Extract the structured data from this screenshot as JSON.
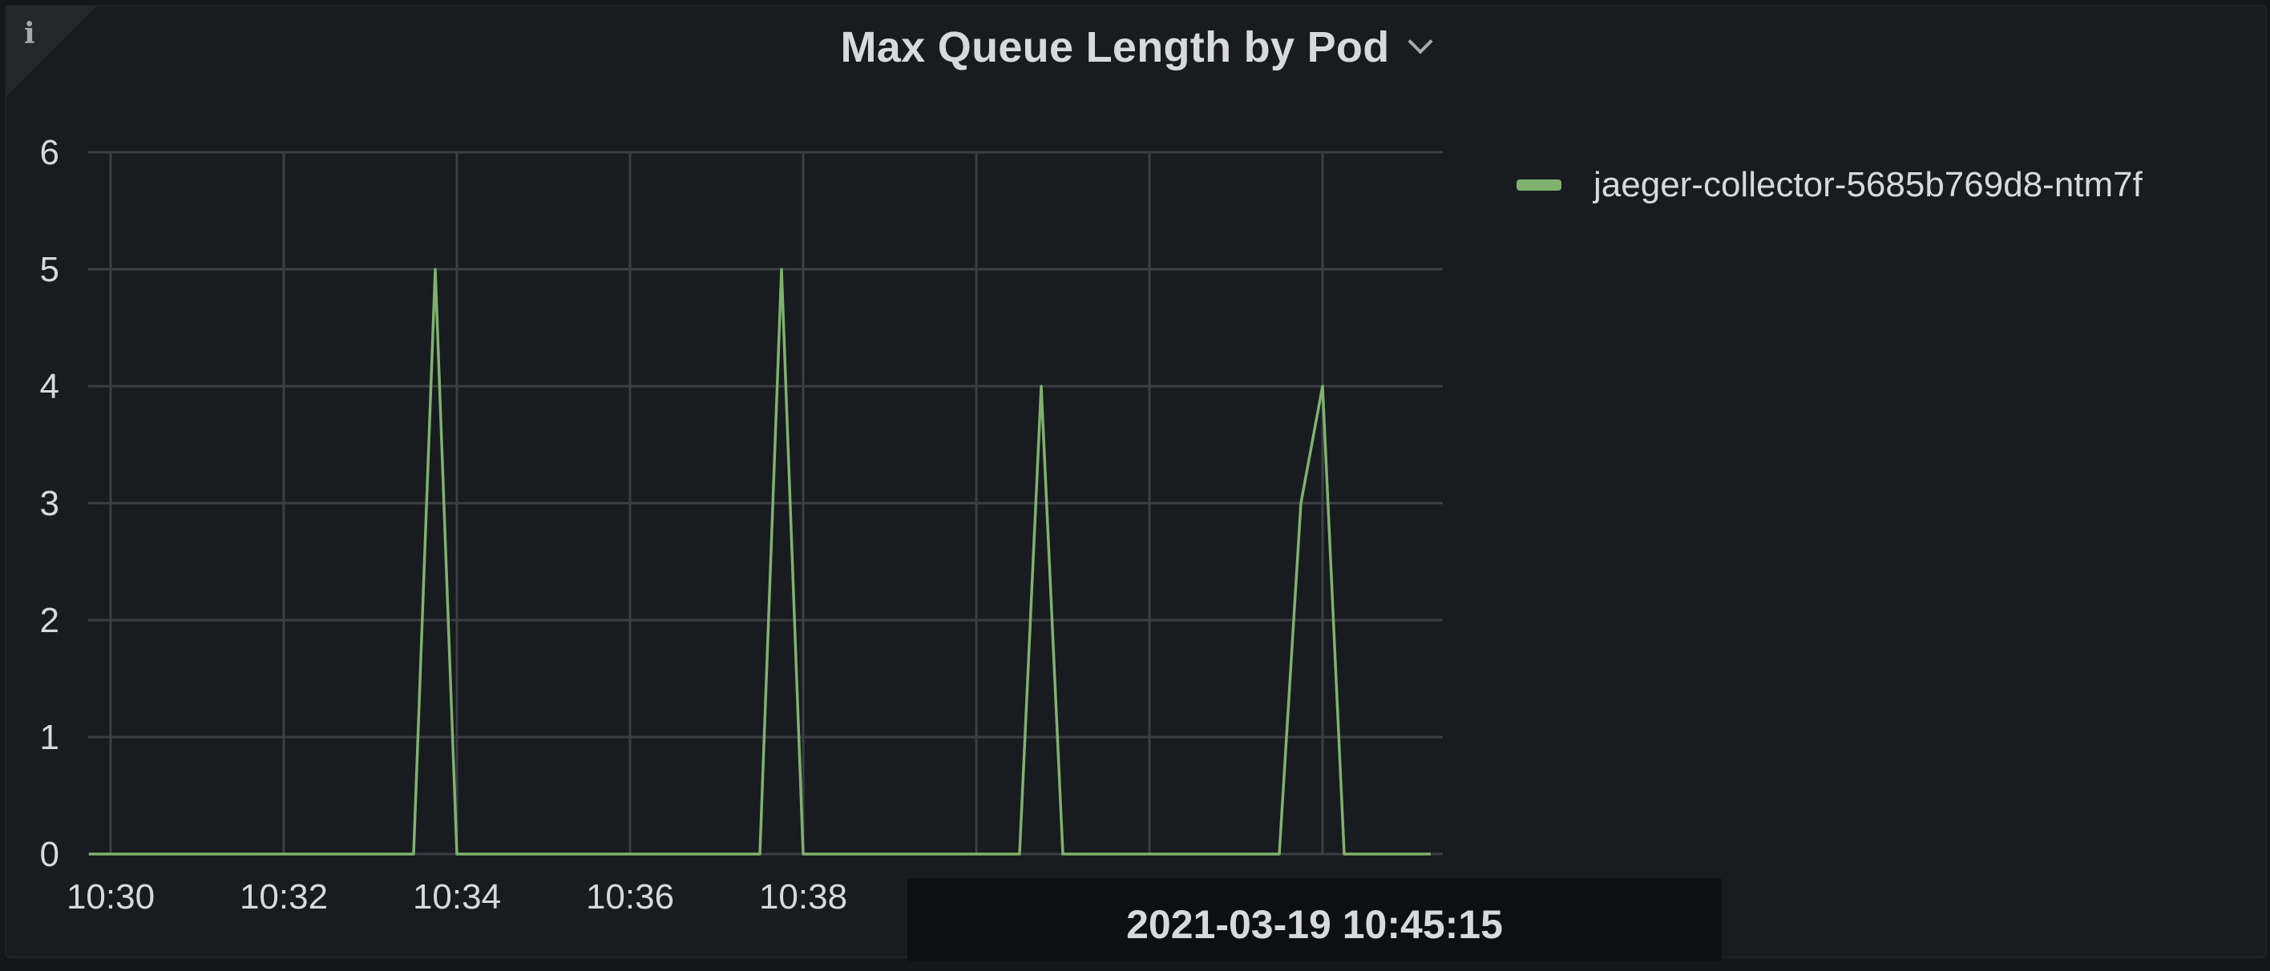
{
  "panel": {
    "title": "Max Queue Length by Pod",
    "info_icon": "info-icon",
    "menu_icon": "chevron-down-icon"
  },
  "tooltip": {
    "time": "2021-03-19 10:45:15"
  },
  "chart_data": {
    "type": "line",
    "title": "Max Queue Length by Pod",
    "xlabel": "",
    "ylabel": "",
    "x_tick_labels": [
      "10:30",
      "10:32",
      "10:34",
      "10:36",
      "10:38"
    ],
    "x_ticks_unlabeled": [
      "10:40",
      "10:42",
      "10:44"
    ],
    "x_range": [
      "10:29:45",
      "10:45:30"
    ],
    "y_ticks": [
      0,
      1,
      2,
      3,
      4,
      5,
      6
    ],
    "ylim": [
      0,
      6
    ],
    "grid": true,
    "legend_position": "right",
    "series": [
      {
        "name": "jaeger-collector-5685b769d8-ntm7f",
        "color": "#7eb26d",
        "points": [
          {
            "x": "10:29:45",
            "y": 0
          },
          {
            "x": "10:33:30",
            "y": 0
          },
          {
            "x": "10:33:45",
            "y": 5
          },
          {
            "x": "10:34:00",
            "y": 0
          },
          {
            "x": "10:37:30",
            "y": 0
          },
          {
            "x": "10:37:45",
            "y": 5
          },
          {
            "x": "10:38:00",
            "y": 0
          },
          {
            "x": "10:40:30",
            "y": 0
          },
          {
            "x": "10:40:45",
            "y": 4
          },
          {
            "x": "10:41:00",
            "y": 0
          },
          {
            "x": "10:43:30",
            "y": 0
          },
          {
            "x": "10:43:45",
            "y": 3
          },
          {
            "x": "10:44:00",
            "y": 4
          },
          {
            "x": "10:44:15",
            "y": 0
          },
          {
            "x": "10:45:15",
            "y": 0
          }
        ]
      }
    ]
  }
}
